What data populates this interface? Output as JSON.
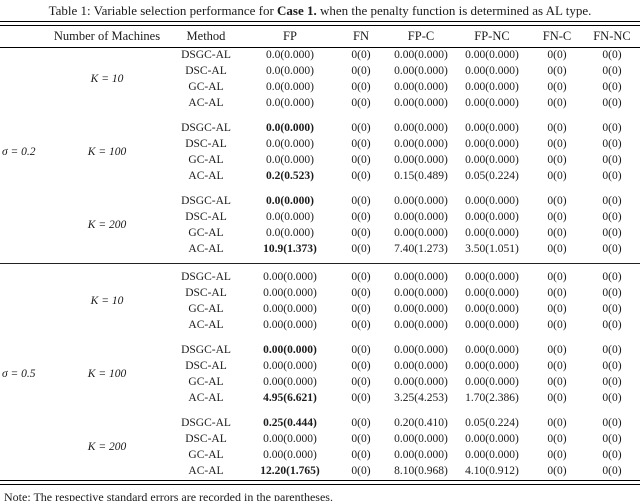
{
  "title": {
    "prefix": "Table 1: Variable selection performance for ",
    "bold_part": "Case 1.",
    "suffix": " when the penalty function is determined as AL type."
  },
  "note": "Note: The respective standard errors are recorded in the parentheses.",
  "table": {
    "headers": [
      "",
      "Number of Machines",
      "Method",
      "FP",
      "FN",
      "FP-C",
      "FP-NC",
      "FN-C",
      "FN-NC"
    ],
    "groups": [
      {
        "sigma": "σ = 0.2",
        "blocks": [
          {
            "k": "K = 10",
            "rows": [
              {
                "method": "DSGC-AL",
                "fp": "0.0(0.000)",
                "bold": false,
                "fn": "0(0)",
                "fp_c": "0.00(0.000)",
                "fp_nc": "0.00(0.000)",
                "fn_c": "0(0)",
                "fn_nc": "0(0)"
              },
              {
                "method": "DSC-AL",
                "fp": "0.0(0.000)",
                "bold": false,
                "fn": "0(0)",
                "fp_c": "0.00(0.000)",
                "fp_nc": "0.00(0.000)",
                "fn_c": "0(0)",
                "fn_nc": "0(0)"
              },
              {
                "method": "GC-AL",
                "fp": "0.0(0.000)",
                "bold": false,
                "fn": "0(0)",
                "fp_c": "0.00(0.000)",
                "fp_nc": "0.00(0.000)",
                "fn_c": "0(0)",
                "fn_nc": "0(0)"
              },
              {
                "method": "AC-AL",
                "fp": "0.0(0.000)",
                "bold": false,
                "fn": "0(0)",
                "fp_c": "0.00(0.000)",
                "fp_nc": "0.00(0.000)",
                "fn_c": "0(0)",
                "fn_nc": "0(0)"
              }
            ]
          },
          {
            "k": "K = 100",
            "rows": [
              {
                "method": "DSGC-AL",
                "fp": "0.0(0.000)",
                "bold": true,
                "fn": "0(0)",
                "fp_c": "0.00(0.000)",
                "fp_nc": "0.00(0.000)",
                "fn_c": "0(0)",
                "fn_nc": "0(0)"
              },
              {
                "method": "DSC-AL",
                "fp": "0.0(0.000)",
                "bold": false,
                "fn": "0(0)",
                "fp_c": "0.00(0.000)",
                "fp_nc": "0.00(0.000)",
                "fn_c": "0(0)",
                "fn_nc": "0(0)"
              },
              {
                "method": "GC-AL",
                "fp": "0.0(0.000)",
                "bold": false,
                "fn": "0(0)",
                "fp_c": "0.00(0.000)",
                "fp_nc": "0.00(0.000)",
                "fn_c": "0(0)",
                "fn_nc": "0(0)"
              },
              {
                "method": "AC-AL",
                "fp": "0.2(0.523)",
                "bold": true,
                "fn": "0(0)",
                "fp_c": "0.15(0.489)",
                "fp_nc": "0.05(0.224)",
                "fn_c": "0(0)",
                "fn_nc": "0(0)"
              }
            ]
          },
          {
            "k": "K = 200",
            "rows": [
              {
                "method": "DSGC-AL",
                "fp": "0.0(0.000)",
                "bold": true,
                "fn": "0(0)",
                "fp_c": "0.00(0.000)",
                "fp_nc": "0.00(0.000)",
                "fn_c": "0(0)",
                "fn_nc": "0(0)"
              },
              {
                "method": "DSC-AL",
                "fp": "0.0(0.000)",
                "bold": false,
                "fn": "0(0)",
                "fp_c": "0.00(0.000)",
                "fp_nc": "0.00(0.000)",
                "fn_c": "0(0)",
                "fn_nc": "0(0)"
              },
              {
                "method": "GC-AL",
                "fp": "0.0(0.000)",
                "bold": false,
                "fn": "0(0)",
                "fp_c": "0.00(0.000)",
                "fp_nc": "0.00(0.000)",
                "fn_c": "0(0)",
                "fn_nc": "0(0)"
              },
              {
                "method": "AC-AL",
                "fp": "10.9(1.373)",
                "bold": true,
                "fn": "0(0)",
                "fp_c": "7.40(1.273)",
                "fp_nc": "3.50(1.051)",
                "fn_c": "0(0)",
                "fn_nc": "0(0)"
              }
            ]
          }
        ]
      },
      {
        "sigma": "σ = 0.5",
        "blocks": [
          {
            "k": "K = 10",
            "rows": [
              {
                "method": "DSGC-AL",
                "fp": "0.00(0.000)",
                "bold": false,
                "fn": "0(0)",
                "fp_c": "0.00(0.000)",
                "fp_nc": "0.00(0.000)",
                "fn_c": "0(0)",
                "fn_nc": "0(0)"
              },
              {
                "method": "DSC-AL",
                "fp": "0.00(0.000)",
                "bold": false,
                "fn": "0(0)",
                "fp_c": "0.00(0.000)",
                "fp_nc": "0.00(0.000)",
                "fn_c": "0(0)",
                "fn_nc": "0(0)"
              },
              {
                "method": "GC-AL",
                "fp": "0.00(0.000)",
                "bold": false,
                "fn": "0(0)",
                "fp_c": "0.00(0.000)",
                "fp_nc": "0.00(0.000)",
                "fn_c": "0(0)",
                "fn_nc": "0(0)"
              },
              {
                "method": "AC-AL",
                "fp": "0.00(0.000)",
                "bold": false,
                "fn": "0(0)",
                "fp_c": "0.00(0.000)",
                "fp_nc": "0.00(0.000)",
                "fn_c": "0(0)",
                "fn_nc": "0(0)"
              }
            ]
          },
          {
            "k": "K = 100",
            "rows": [
              {
                "method": "DSGC-AL",
                "fp": "0.00(0.000)",
                "bold": true,
                "fn": "0(0)",
                "fp_c": "0.00(0.000)",
                "fp_nc": "0.00(0.000)",
                "fn_c": "0(0)",
                "fn_nc": "0(0)"
              },
              {
                "method": "DSC-AL",
                "fp": "0.00(0.000)",
                "bold": false,
                "fn": "0(0)",
                "fp_c": "0.00(0.000)",
                "fp_nc": "0.00(0.000)",
                "fn_c": "0(0)",
                "fn_nc": "0(0)"
              },
              {
                "method": "GC-AL",
                "fp": "0.00(0.000)",
                "bold": false,
                "fn": "0(0)",
                "fp_c": "0.00(0.000)",
                "fp_nc": "0.00(0.000)",
                "fn_c": "0(0)",
                "fn_nc": "0(0)"
              },
              {
                "method": "AC-AL",
                "fp": "4.95(6.621)",
                "bold": true,
                "fn": "0(0)",
                "fp_c": "3.25(4.253)",
                "fp_nc": "1.70(2.386)",
                "fn_c": "0(0)",
                "fn_nc": "0(0)"
              }
            ]
          },
          {
            "k": "K = 200",
            "rows": [
              {
                "method": "DSGC-AL",
                "fp": "0.25(0.444)",
                "bold": true,
                "fn": "0(0)",
                "fp_c": "0.20(0.410)",
                "fp_nc": "0.05(0.224)",
                "fn_c": "0(0)",
                "fn_nc": "0(0)"
              },
              {
                "method": "DSC-AL",
                "fp": "0.00(0.000)",
                "bold": false,
                "fn": "0(0)",
                "fp_c": "0.00(0.000)",
                "fp_nc": "0.00(0.000)",
                "fn_c": "0(0)",
                "fn_nc": "0(0)"
              },
              {
                "method": "GC-AL",
                "fp": "0.00(0.000)",
                "bold": false,
                "fn": "0(0)",
                "fp_c": "0.00(0.000)",
                "fp_nc": "0.00(0.000)",
                "fn_c": "0(0)",
                "fn_nc": "0(0)"
              },
              {
                "method": "AC-AL",
                "fp": "12.20(1.765)",
                "bold": true,
                "fn": "0(0)",
                "fp_c": "8.10(0.968)",
                "fp_nc": "4.10(0.912)",
                "fn_c": "0(0)",
                "fn_nc": "0(0)"
              }
            ]
          }
        ]
      }
    ]
  }
}
